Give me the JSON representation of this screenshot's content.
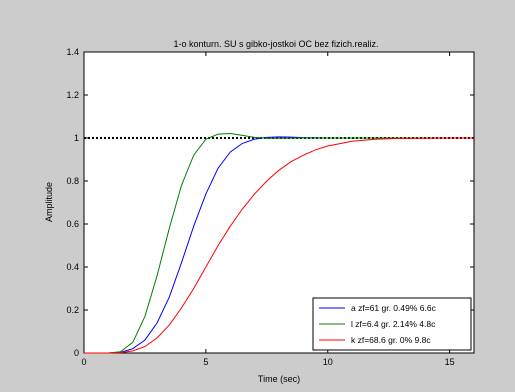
{
  "chart_data": {
    "type": "line",
    "title": "1-o konturn. SU s gibko-jostkoi OC bez fizich.realiz.",
    "xlabel": "Time (sec)",
    "ylabel": "Amplitude",
    "xlim": [
      0,
      16
    ],
    "ylim": [
      0,
      1.4
    ],
    "x_ticks": [
      "0",
      "5",
      "10",
      "15"
    ],
    "y_ticks": [
      "0",
      "0.2",
      "0.4",
      "0.6",
      "0.8",
      "1",
      "1.2",
      "1.4"
    ],
    "grid": false,
    "legend_position": "bottom-right",
    "reference_line": {
      "y": 1,
      "style": "dotted",
      "color": "#000000"
    },
    "series": [
      {
        "name": "a zf=61 gr. 0.49% 6.6c",
        "color": "#0000ff",
        "x": [
          0,
          1,
          1.5,
          2,
          2.5,
          3,
          3.5,
          4,
          4.5,
          5,
          5.5,
          6,
          6.5,
          7,
          7.5,
          8,
          8.5,
          9,
          10,
          11,
          12,
          13,
          14,
          15,
          16
        ],
        "y": [
          0,
          0,
          0.003,
          0.02,
          0.06,
          0.14,
          0.26,
          0.42,
          0.59,
          0.74,
          0.86,
          0.935,
          0.975,
          0.995,
          1.003,
          1.005,
          1.004,
          1.002,
          1.0,
          1.0,
          1.0,
          1.0,
          1.0,
          1.0,
          1.0
        ]
      },
      {
        "name": "l zf=6.4 gr. 2.14% 4.8c",
        "color": "#008000",
        "x": [
          0,
          1,
          1.5,
          2,
          2.5,
          3,
          3.5,
          4,
          4.5,
          5,
          5.5,
          6,
          6.5,
          7,
          7.5,
          8,
          9,
          10,
          11,
          12,
          13,
          14,
          15,
          16
        ],
        "y": [
          0,
          0,
          0.006,
          0.05,
          0.17,
          0.36,
          0.58,
          0.78,
          0.92,
          0.995,
          1.018,
          1.021,
          1.012,
          1.003,
          0.999,
          0.999,
          1.0,
          1.0,
          1.0,
          1.0,
          1.0,
          1.0,
          1.0,
          1.0
        ]
      },
      {
        "name": "k zf=68.6 gr. 0% 9.8c",
        "color": "#ff0000",
        "x": [
          0,
          1,
          1.5,
          2,
          2.5,
          3,
          3.5,
          4,
          4.5,
          5,
          5.5,
          6,
          6.5,
          7,
          7.5,
          8,
          8.5,
          9,
          9.5,
          10,
          11,
          12,
          13,
          14,
          15,
          16
        ],
        "y": [
          0,
          0,
          0.002,
          0.01,
          0.03,
          0.07,
          0.13,
          0.21,
          0.3,
          0.4,
          0.5,
          0.59,
          0.67,
          0.74,
          0.8,
          0.85,
          0.89,
          0.92,
          0.945,
          0.963,
          0.985,
          0.995,
          0.998,
          0.999,
          1.0,
          1.0
        ]
      }
    ]
  }
}
